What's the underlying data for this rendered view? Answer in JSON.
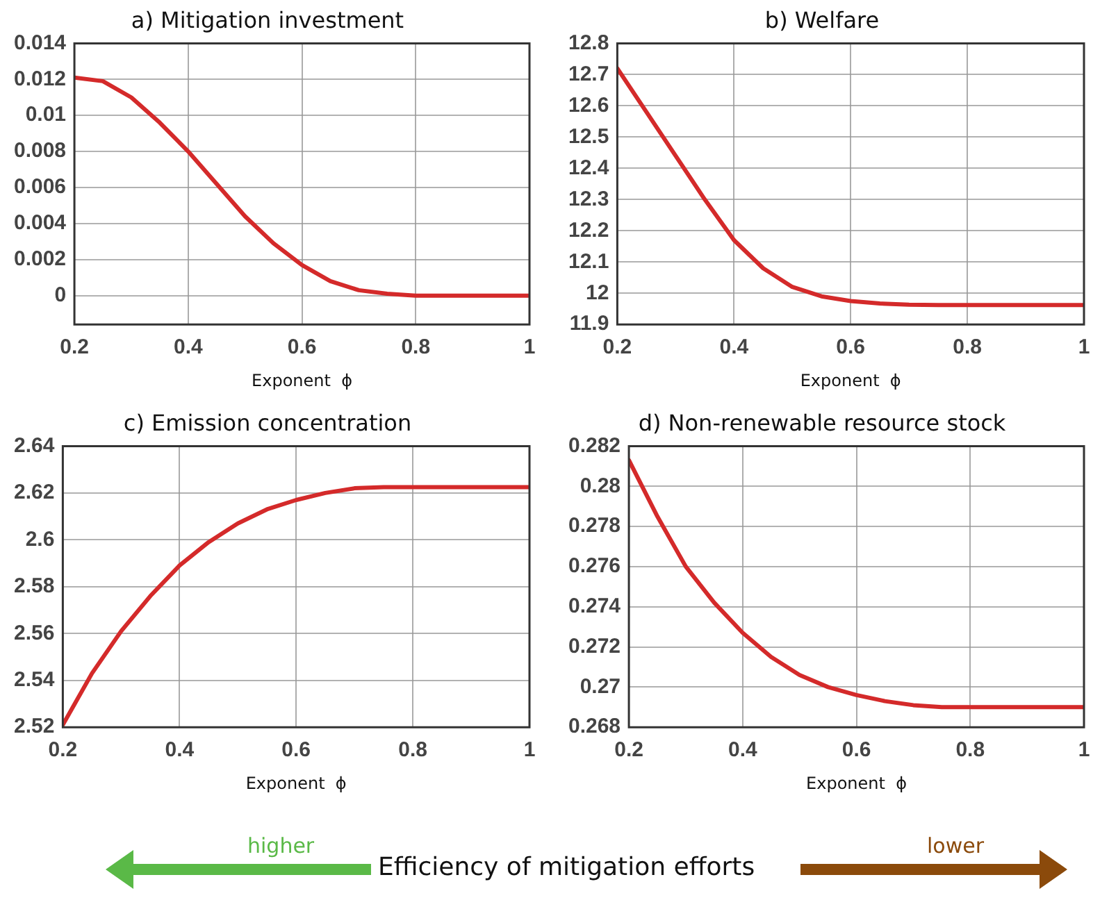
{
  "chart_data": [
    {
      "type": "line",
      "title": "a) Mitigation investment",
      "xlabel": "Exponent  ϕ",
      "x": [
        0.2,
        0.25,
        0.3,
        0.35,
        0.4,
        0.45,
        0.5,
        0.55,
        0.6,
        0.65,
        0.7,
        0.75,
        0.8,
        0.85,
        0.9,
        0.95,
        1
      ],
      "series": [
        {
          "color": "#d42a2a",
          "values": [
            0.0121,
            0.0119,
            0.011,
            0.0096,
            0.008,
            0.0062,
            0.0044,
            0.0029,
            0.0017,
            0.0008,
            0.0003,
            0.0001,
            0,
            0,
            0,
            0,
            0
          ]
        }
      ],
      "xlim": [
        0.2,
        1
      ],
      "xticks": [
        0.2,
        0.4,
        0.6,
        0.8,
        1
      ],
      "ylim": [
        -0.0016,
        0.014
      ],
      "yticks": [
        0,
        0.002,
        0.004,
        0.006,
        0.008,
        0.01,
        0.012,
        0.014
      ],
      "grid": true,
      "marker": "none",
      "line_style": "solid"
    },
    {
      "type": "line",
      "title": "b) Welfare",
      "xlabel": "Exponent  ϕ",
      "x": [
        0.2,
        0.25,
        0.3,
        0.35,
        0.4,
        0.45,
        0.5,
        0.55,
        0.6,
        0.65,
        0.7,
        0.75,
        0.8,
        0.85,
        0.9,
        0.95,
        1
      ],
      "series": [
        {
          "color": "#d42a2a",
          "values": [
            12.72,
            12.58,
            12.44,
            12.3,
            12.17,
            12.08,
            12.02,
            11.99,
            11.975,
            11.967,
            11.963,
            11.962,
            11.962,
            11.962,
            11.962,
            11.962,
            11.962
          ]
        }
      ],
      "xlim": [
        0.2,
        1
      ],
      "xticks": [
        0.2,
        0.4,
        0.6,
        0.8,
        1
      ],
      "ylim": [
        11.9,
        12.8
      ],
      "yticks": [
        11.9,
        12,
        12.1,
        12.2,
        12.3,
        12.4,
        12.5,
        12.6,
        12.7,
        12.8
      ],
      "grid": true,
      "marker": "none",
      "line_style": "solid"
    },
    {
      "type": "line",
      "title": "c) Emission concentration",
      "xlabel": "Exponent  ϕ",
      "x": [
        0.2,
        0.25,
        0.3,
        0.35,
        0.4,
        0.45,
        0.5,
        0.55,
        0.6,
        0.65,
        0.7,
        0.75,
        0.8,
        0.85,
        0.9,
        0.95,
        1
      ],
      "series": [
        {
          "color": "#d42a2a",
          "values": [
            2.521,
            2.543,
            2.561,
            2.576,
            2.589,
            2.599,
            2.607,
            2.613,
            2.617,
            2.62,
            2.622,
            2.6225,
            2.6225,
            2.6225,
            2.6225,
            2.6225,
            2.6225
          ]
        }
      ],
      "xlim": [
        0.2,
        1
      ],
      "xticks": [
        0.2,
        0.4,
        0.6,
        0.8,
        1
      ],
      "ylim": [
        2.52,
        2.64
      ],
      "yticks": [
        2.52,
        2.54,
        2.56,
        2.58,
        2.6,
        2.62,
        2.64
      ],
      "grid": true,
      "marker": "none",
      "line_style": "solid"
    },
    {
      "type": "line",
      "title": "d) Non-renewable resource stock",
      "xlabel": "Exponent  ϕ",
      "x": [
        0.2,
        0.25,
        0.3,
        0.35,
        0.4,
        0.45,
        0.5,
        0.55,
        0.6,
        0.65,
        0.7,
        0.75,
        0.8,
        0.85,
        0.9,
        0.95,
        1
      ],
      "series": [
        {
          "color": "#d42a2a",
          "values": [
            0.2813,
            0.2785,
            0.276,
            0.2742,
            0.2727,
            0.2715,
            0.2706,
            0.27,
            0.2696,
            0.2693,
            0.2691,
            0.269,
            0.269,
            0.269,
            0.269,
            0.269,
            0.269
          ]
        }
      ],
      "xlim": [
        0.2,
        1
      ],
      "xticks": [
        0.2,
        0.4,
        0.6,
        0.8,
        1
      ],
      "ylim": [
        0.268,
        0.282
      ],
      "yticks": [
        0.268,
        0.27,
        0.272,
        0.274,
        0.276,
        0.278,
        0.28,
        0.282
      ],
      "grid": true,
      "marker": "none",
      "line_style": "solid"
    },
    {
      "type": "other",
      "annotations": [
        "higher",
        "Efficiency of mitigation efforts",
        "lower"
      ]
    }
  ]
}
